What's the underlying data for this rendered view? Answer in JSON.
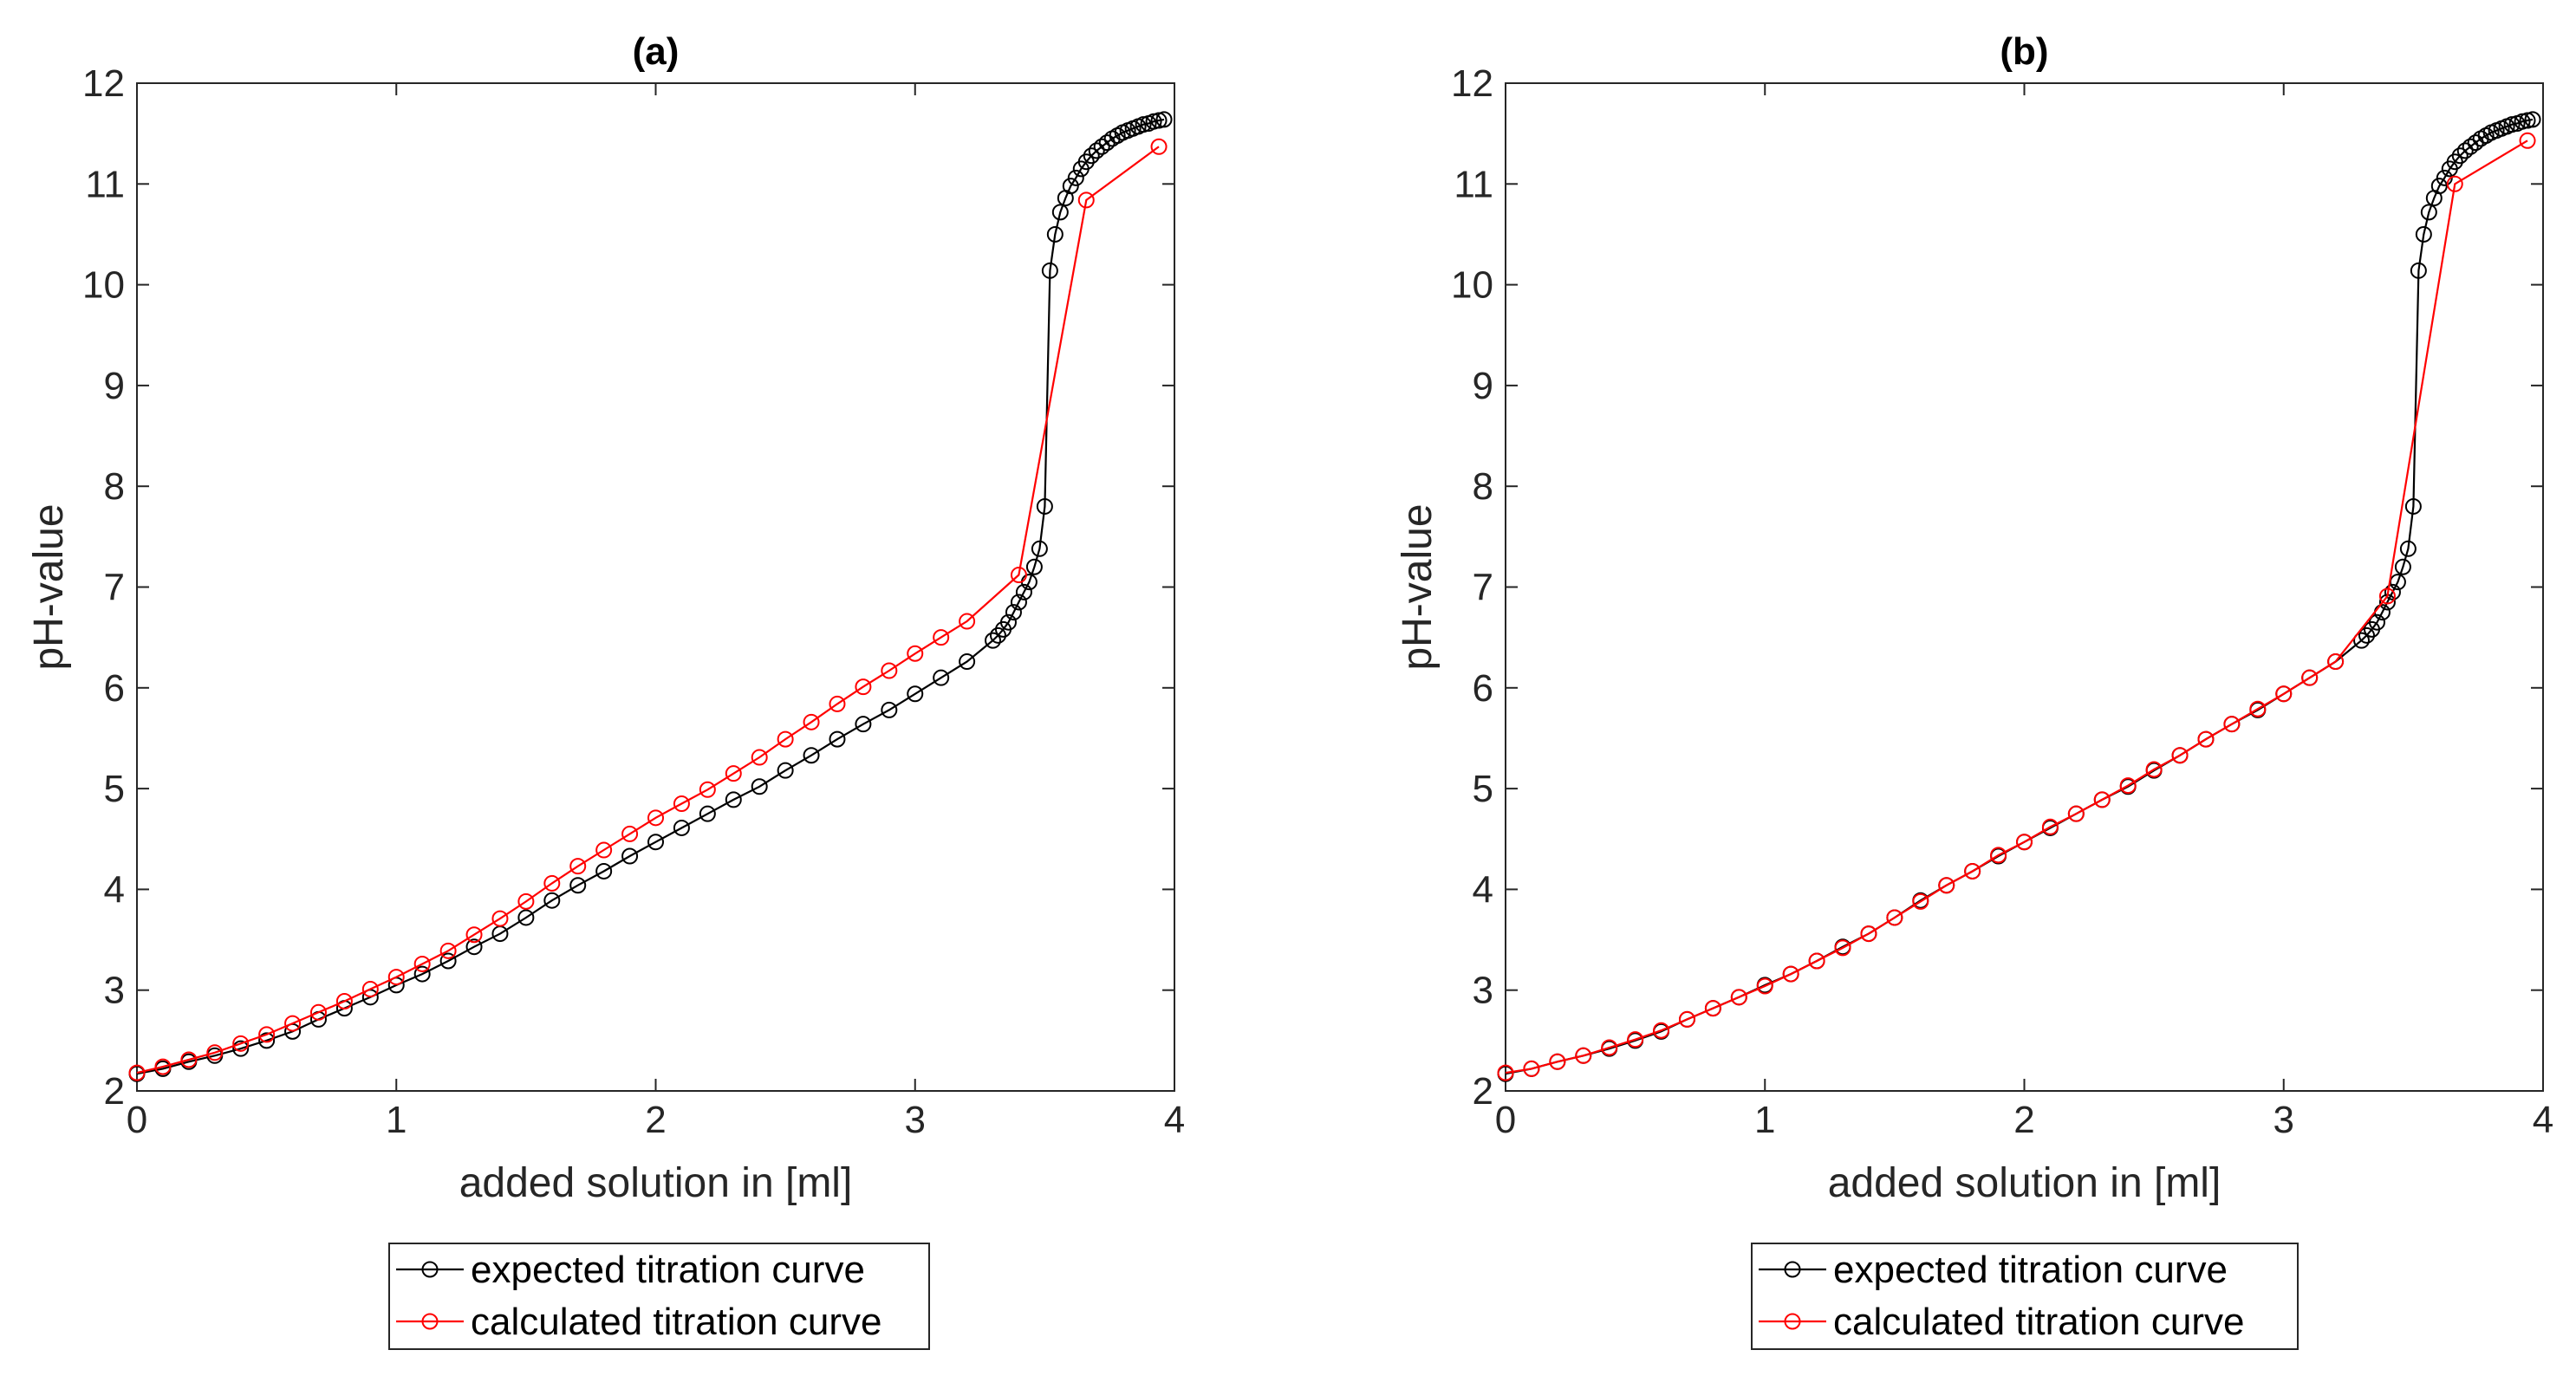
{
  "chart_data": [
    {
      "type": "line",
      "title": "(a)",
      "xlabel": "added solution in [ml]",
      "ylabel": "pH-value",
      "xlim": [
        0,
        4
      ],
      "ylim": [
        2,
        12
      ],
      "xticks": [
        0,
        1,
        2,
        3,
        4
      ],
      "yticks": [
        2,
        3,
        4,
        5,
        6,
        7,
        8,
        9,
        10,
        11,
        12
      ],
      "grid": false,
      "legend_position": "bottom-outside",
      "series": [
        {
          "name": "expected titration curve",
          "color": "#000000",
          "marker": "circle",
          "x": [
            0,
            0.1,
            0.2,
            0.3,
            0.4,
            0.5,
            0.6,
            0.7,
            0.8,
            0.9,
            1.0,
            1.1,
            1.2,
            1.3,
            1.4,
            1.5,
            1.6,
            1.7,
            1.8,
            1.9,
            2.0,
            2.1,
            2.2,
            2.3,
            2.4,
            2.5,
            2.6,
            2.7,
            2.8,
            2.9,
            3.0,
            3.1,
            3.2,
            3.3,
            3.32,
            3.34,
            3.36,
            3.38,
            3.4,
            3.42,
            3.44,
            3.46,
            3.48,
            3.5,
            3.52,
            3.54,
            3.56,
            3.58,
            3.6,
            3.62,
            3.64,
            3.66,
            3.68,
            3.7,
            3.72,
            3.74,
            3.76,
            3.78,
            3.8,
            3.82,
            3.84,
            3.86,
            3.88,
            3.9,
            3.92,
            3.94,
            3.96
          ],
          "y": [
            2.17,
            2.22,
            2.29,
            2.35,
            2.42,
            2.5,
            2.59,
            2.71,
            2.82,
            2.93,
            3.05,
            3.16,
            3.29,
            3.43,
            3.56,
            3.72,
            3.89,
            4.04,
            4.18,
            4.33,
            4.47,
            4.61,
            4.75,
            4.89,
            5.02,
            5.18,
            5.33,
            5.49,
            5.64,
            5.78,
            5.94,
            6.1,
            6.26,
            6.47,
            6.52,
            6.58,
            6.65,
            6.75,
            6.85,
            6.95,
            7.05,
            7.2,
            7.38,
            7.8,
            10.14,
            10.5,
            10.72,
            10.86,
            10.98,
            11.06,
            11.15,
            11.22,
            11.28,
            11.33,
            11.37,
            11.41,
            11.45,
            11.48,
            11.51,
            11.53,
            11.55,
            11.57,
            11.59,
            11.6,
            11.62,
            11.63,
            11.64
          ]
        },
        {
          "name": "calculated titration curve",
          "color": "#ff0000",
          "marker": "circle",
          "x": [
            0,
            0.1,
            0.2,
            0.3,
            0.4,
            0.5,
            0.6,
            0.7,
            0.8,
            0.9,
            1.0,
            1.1,
            1.2,
            1.3,
            1.4,
            1.5,
            1.6,
            1.7,
            1.8,
            1.9,
            2.0,
            2.1,
            2.2,
            2.3,
            2.4,
            2.5,
            2.6,
            2.7,
            2.8,
            2.9,
            3.0,
            3.1,
            3.2,
            3.4,
            3.66,
            3.94
          ],
          "y": [
            2.18,
            2.24,
            2.31,
            2.38,
            2.47,
            2.56,
            2.67,
            2.78,
            2.89,
            3.01,
            3.13,
            3.26,
            3.39,
            3.55,
            3.71,
            3.88,
            4.06,
            4.23,
            4.39,
            4.55,
            4.71,
            4.85,
            4.99,
            5.15,
            5.31,
            5.49,
            5.66,
            5.84,
            6.01,
            6.17,
            6.34,
            6.5,
            6.66,
            7.12,
            10.84,
            11.37
          ]
        }
      ]
    },
    {
      "type": "line",
      "title": "(b)",
      "xlabel": "added solution in [ml]",
      "ylabel": "pH-value",
      "xlim": [
        0,
        4
      ],
      "ylim": [
        2,
        12
      ],
      "xticks": [
        0,
        1,
        2,
        3,
        4
      ],
      "yticks": [
        2,
        3,
        4,
        5,
        6,
        7,
        8,
        9,
        10,
        11,
        12
      ],
      "grid": false,
      "legend_position": "bottom-outside",
      "series": [
        {
          "name": "expected titration curve",
          "color": "#000000",
          "marker": "circle",
          "x": [
            0,
            0.1,
            0.2,
            0.3,
            0.4,
            0.5,
            0.6,
            0.7,
            0.8,
            0.9,
            1.0,
            1.1,
            1.2,
            1.3,
            1.4,
            1.5,
            1.6,
            1.7,
            1.8,
            1.9,
            2.0,
            2.1,
            2.2,
            2.3,
            2.4,
            2.5,
            2.6,
            2.7,
            2.8,
            2.9,
            3.0,
            3.1,
            3.2,
            3.3,
            3.32,
            3.34,
            3.36,
            3.38,
            3.4,
            3.42,
            3.44,
            3.46,
            3.48,
            3.5,
            3.52,
            3.54,
            3.56,
            3.58,
            3.6,
            3.62,
            3.64,
            3.66,
            3.68,
            3.7,
            3.72,
            3.74,
            3.76,
            3.78,
            3.8,
            3.82,
            3.84,
            3.86,
            3.88,
            3.9,
            3.92,
            3.94,
            3.96
          ],
          "y": [
            2.17,
            2.22,
            2.29,
            2.35,
            2.42,
            2.5,
            2.59,
            2.71,
            2.82,
            2.93,
            3.05,
            3.16,
            3.29,
            3.43,
            3.56,
            3.72,
            3.89,
            4.04,
            4.18,
            4.33,
            4.47,
            4.61,
            4.75,
            4.89,
            5.02,
            5.18,
            5.33,
            5.49,
            5.64,
            5.78,
            5.94,
            6.1,
            6.26,
            6.47,
            6.52,
            6.58,
            6.65,
            6.75,
            6.85,
            6.95,
            7.05,
            7.2,
            7.38,
            7.8,
            10.14,
            10.5,
            10.72,
            10.86,
            10.98,
            11.06,
            11.15,
            11.22,
            11.28,
            11.33,
            11.37,
            11.41,
            11.45,
            11.48,
            11.51,
            11.53,
            11.55,
            11.57,
            11.59,
            11.6,
            11.62,
            11.63,
            11.64
          ]
        },
        {
          "name": "calculated titration curve",
          "color": "#ff0000",
          "marker": "circle",
          "x": [
            0,
            0.1,
            0.2,
            0.3,
            0.4,
            0.5,
            0.6,
            0.7,
            0.8,
            0.9,
            1.0,
            1.1,
            1.2,
            1.3,
            1.4,
            1.5,
            1.6,
            1.7,
            1.8,
            1.9,
            2.0,
            2.1,
            2.2,
            2.3,
            2.4,
            2.5,
            2.6,
            2.7,
            2.8,
            2.9,
            3.0,
            3.1,
            3.2,
            3.4,
            3.66,
            3.94
          ],
          "y": [
            2.18,
            2.22,
            2.29,
            2.35,
            2.43,
            2.51,
            2.6,
            2.71,
            2.82,
            2.93,
            3.04,
            3.16,
            3.29,
            3.42,
            3.56,
            3.72,
            3.88,
            4.04,
            4.18,
            4.34,
            4.47,
            4.62,
            4.75,
            4.89,
            5.03,
            5.19,
            5.33,
            5.49,
            5.64,
            5.79,
            5.94,
            6.1,
            6.26,
            6.91,
            11.0,
            11.43
          ]
        }
      ]
    }
  ]
}
